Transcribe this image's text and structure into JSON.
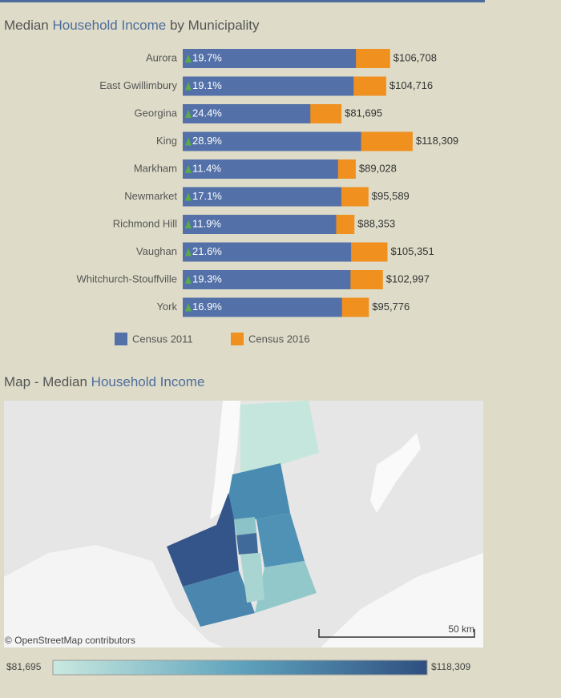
{
  "chart_data": {
    "type": "bar",
    "title": [
      "Median ",
      "Household Income",
      " by Municipality"
    ],
    "categories": [
      "Aurora",
      "East Gwillimbury",
      "Georgina",
      "King",
      "Markham",
      "Newmarket",
      "Richmond Hill",
      "Vaughan",
      "Whitchurch-Stouffville",
      "York"
    ],
    "series": [
      {
        "name": "Census 2011",
        "color": "#5371a8",
        "values": [
          89146,
          87923,
          65671,
          91783,
          79918,
          81630,
          78957,
          86637,
          86334,
          81930
        ]
      },
      {
        "name": "Census 2016",
        "color": "#f0901f",
        "values": [
          106708,
          104716,
          81695,
          118309,
          89028,
          95589,
          88353,
          105351,
          102997,
          95776
        ],
        "value_labels": [
          "$106,708",
          "$104,716",
          "$81,695",
          "$118,309",
          "$89,028",
          "$95,589",
          "$88,353",
          "$105,351",
          "$102,997",
          "$95,776"
        ]
      }
    ],
    "change": {
      "values": [
        19.7,
        19.1,
        24.4,
        28.9,
        11.4,
        17.1,
        11.9,
        21.6,
        19.3,
        16.9
      ],
      "value_labels": [
        "19.7%",
        "19.1%",
        "24.4%",
        "28.9%",
        "11.4%",
        "17.1%",
        "11.9%",
        "21.6%",
        "19.3%",
        "16.9%"
      ]
    },
    "xlim": [
      0,
      120000
    ],
    "legend": "bottom"
  },
  "map": {
    "title": [
      "Map - Median ",
      "Household Income"
    ],
    "attribution": "© OpenStreetMap contributors",
    "scale": "50 km",
    "legend": {
      "min": "$81,695",
      "max": "$118,309"
    }
  }
}
